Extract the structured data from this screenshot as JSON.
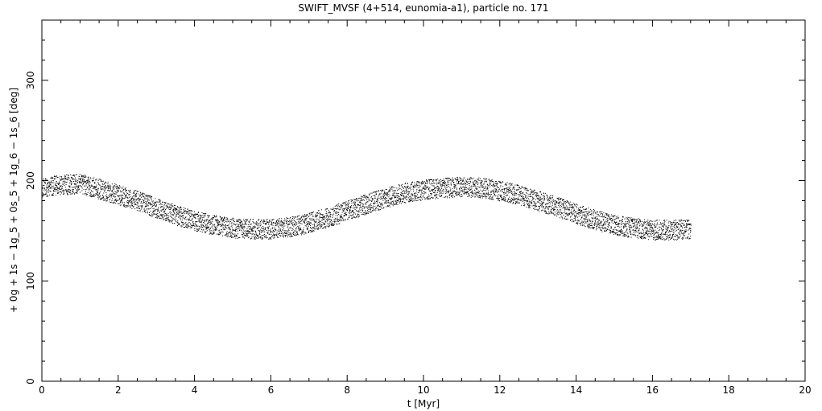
{
  "chart_data": {
    "type": "scatter",
    "title": "SWIFT_MVSF (4+514, eunomia-a1), particle no. 171",
    "xlabel": "t [Myr]",
    "ylabel": "+ 0g + 1s − 1g_5 + 0s_5 + 1g_6 − 1s_6 [deg]",
    "xlim": [
      0,
      20
    ],
    "ylim": [
      0,
      360
    ],
    "xticks": [
      0,
      2,
      4,
      6,
      8,
      10,
      12,
      14,
      16,
      18,
      20
    ],
    "yticks": [
      0,
      100,
      200,
      300
    ],
    "grid": false,
    "point_color": "#000000",
    "series": [
      {
        "x": [
          0.0,
          0.5,
          1.0,
          1.5,
          2.0,
          2.5,
          3.0,
          3.5,
          4.0,
          4.5,
          5.0,
          5.5,
          6.0,
          6.5,
          7.0,
          7.5,
          8.0,
          8.5,
          9.0,
          9.5,
          10.0,
          10.5,
          11.0,
          11.5,
          12.0,
          12.5,
          13.0,
          13.5,
          14.0,
          14.5,
          15.0,
          15.5,
          16.0,
          16.5,
          17.0
        ],
        "y": [
          194,
          196,
          197,
          192,
          186,
          180,
          173,
          166,
          160,
          156,
          153,
          152,
          152,
          154,
          158,
          164,
          170,
          177,
          183,
          188,
          191,
          193,
          194,
          193,
          190,
          186,
          180,
          174,
          167,
          161,
          156,
          153,
          151,
          151,
          152
        ],
        "spread": 10
      }
    ]
  }
}
